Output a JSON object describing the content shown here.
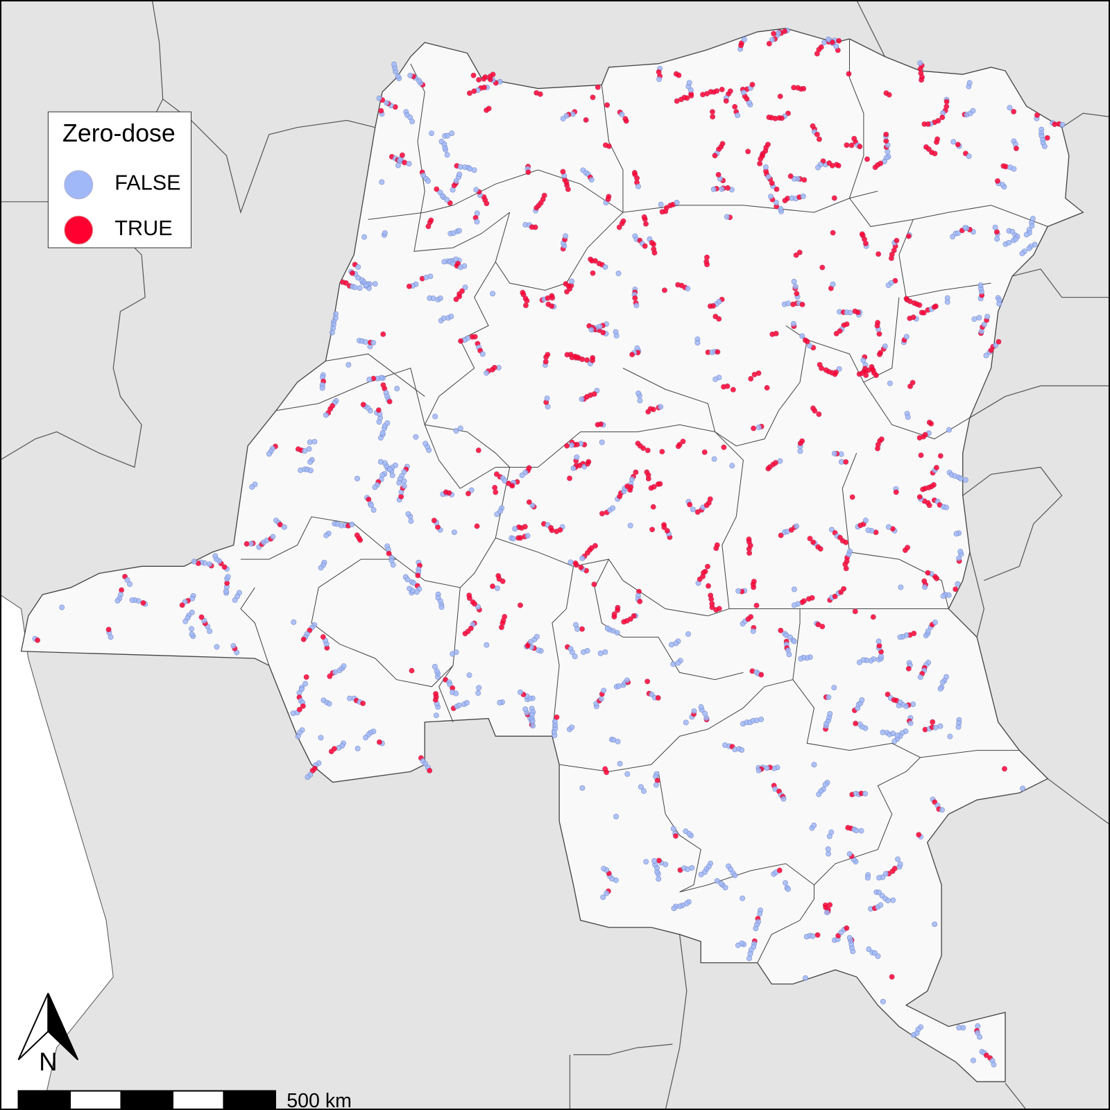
{
  "legend": {
    "title": "Zero-dose",
    "items": [
      {
        "label": "FALSE",
        "color": "#a0b8f8"
      },
      {
        "label": "TRUE",
        "color": "#ff0030"
      }
    ]
  },
  "north_arrow": {
    "label": "N"
  },
  "scale_bar": {
    "label": "500 km"
  },
  "colors": {
    "background": "#e4e4e4",
    "country_fill": "#f9f9f9",
    "border": "#555555",
    "ocean": "#ffffff"
  }
}
